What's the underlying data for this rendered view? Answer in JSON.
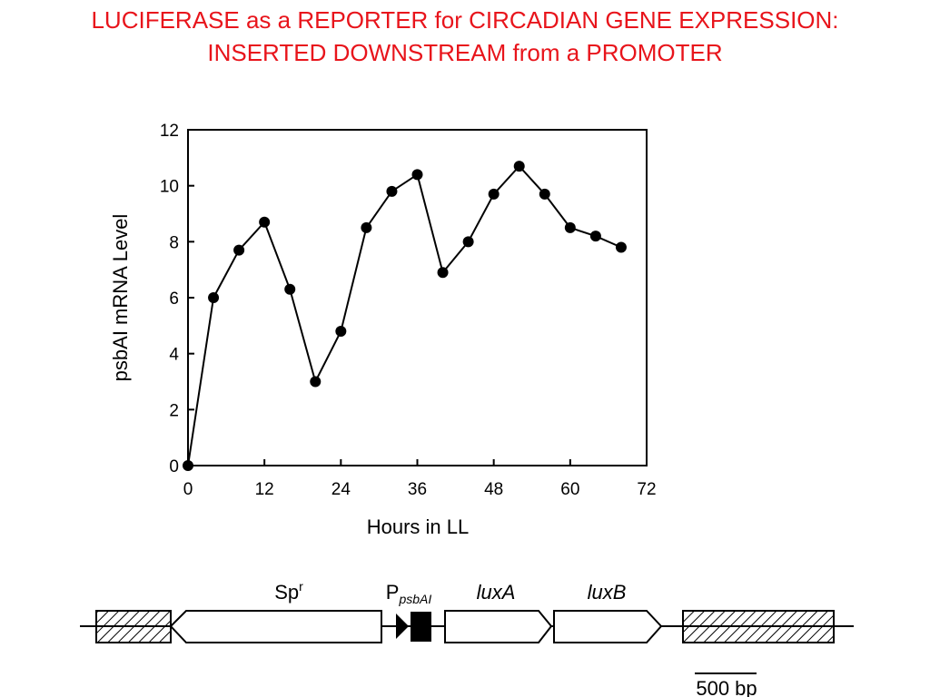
{
  "chart_data": {
    "type": "line",
    "title": "LUCIFERASE as a REPORTER for CIRCADIAN GENE EXPRESSION: INSERTED DOWNSTREAM from a PROMOTER",
    "x_label": "Hours in LL",
    "y_label": "psbAI mRNA Level",
    "x": [
      0,
      4,
      8,
      12,
      16,
      20,
      24,
      28,
      32,
      36,
      40,
      44,
      48,
      52,
      56,
      60,
      64,
      68
    ],
    "series": [
      {
        "color": "#000000",
        "values": [
          0,
          6,
          7.7,
          8.7,
          6.3,
          3,
          4.8,
          8.5,
          9.8,
          10.4,
          6.9,
          8,
          9.7,
          10.7,
          9.7,
          8.5,
          8.2,
          7.8
        ]
      }
    ],
    "xlim": [
      0,
      72
    ],
    "xticks": [
      0,
      12,
      24,
      36,
      48,
      60,
      72
    ],
    "ylim": [
      0,
      12
    ],
    "yticks": [
      0,
      2,
      4,
      6,
      8,
      10,
      12
    ]
  },
  "diagram": {
    "spr": {
      "text": "Sp",
      "sup": "r"
    },
    "promoter": {
      "text": "P",
      "sub": "psbAI"
    },
    "luxA": "luxA",
    "luxB": "luxB",
    "scale": "500 bp"
  }
}
